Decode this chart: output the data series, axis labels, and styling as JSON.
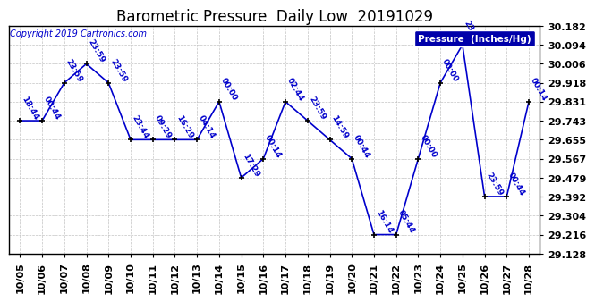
{
  "title": "Barometric Pressure  Daily Low  20191029",
  "copyright": "Copyright 2019 Cartronics.com",
  "legend_label": "Pressure  (Inches/Hg)",
  "line_color": "#0000cc",
  "background_color": "#ffffff",
  "grid_color": "#aaaaaa",
  "dates": [
    "10/05",
    "10/06",
    "10/07",
    "10/08",
    "10/09",
    "10/10",
    "10/11",
    "10/12",
    "10/13",
    "10/14",
    "10/15",
    "10/16",
    "10/17",
    "10/18",
    "10/19",
    "10/20",
    "10/21",
    "10/22",
    "10/23",
    "10/24",
    "10/25",
    "10/26",
    "10/27",
    "10/28"
  ],
  "values": [
    29.743,
    29.743,
    29.918,
    30.006,
    29.918,
    29.655,
    29.655,
    29.655,
    29.655,
    29.831,
    29.479,
    29.567,
    29.831,
    29.743,
    29.655,
    29.567,
    29.216,
    29.216,
    29.567,
    29.918,
    30.094,
    29.392,
    29.392,
    29.831
  ],
  "time_labels": [
    "18:44",
    "00:44",
    "23:59",
    "23:59",
    "23:59",
    "23:44",
    "09:29",
    "16:29",
    "04:14",
    "00:00",
    "17:29",
    "00:14",
    "02:44",
    "23:59",
    "14:59",
    "00:44",
    "16:14",
    "05:44",
    "00:00",
    "00:00",
    "23:59",
    "23:59",
    "00:44",
    "00:14"
  ],
  "yticks": [
    29.128,
    29.216,
    29.304,
    29.392,
    29.479,
    29.567,
    29.655,
    29.743,
    29.831,
    29.918,
    30.006,
    30.094,
    30.182
  ],
  "ylim": [
    29.128,
    30.182
  ],
  "legend_bg": "#0000aa",
  "legend_fg": "#ffffff"
}
